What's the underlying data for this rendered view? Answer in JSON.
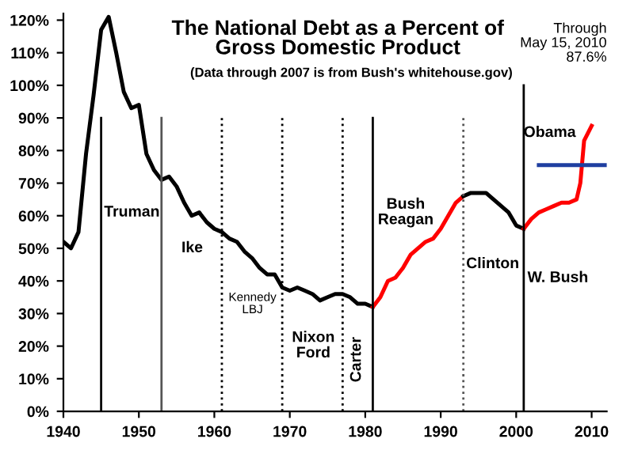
{
  "chart_data": {
    "type": "line",
    "title": "The National Debt as a Percent of\nGross Domestic Product",
    "subtitle": "(Data through 2007 is from Bush's whitehouse.gov)",
    "series": [
      {
        "color": "#000000",
        "x": [
          1940,
          1941,
          1942,
          1943,
          1944,
          1945,
          1946,
          1947,
          1948,
          1949,
          1950,
          1951,
          1952,
          1953,
          1954,
          1955,
          1956,
          1957,
          1958,
          1959,
          1960,
          1961,
          1962,
          1963,
          1964,
          1965,
          1966,
          1967,
          1968,
          1969,
          1970,
          1971,
          1972,
          1973,
          1974,
          1975,
          1976,
          1977,
          1978,
          1979,
          1980,
          1981
        ],
        "values": [
          52,
          50,
          55,
          79,
          97,
          117,
          121,
          110,
          98,
          93,
          94,
          79,
          74,
          71,
          72,
          69,
          64,
          60,
          61,
          58,
          56,
          55,
          53,
          52,
          49,
          47,
          44,
          42,
          42,
          38,
          37,
          38,
          37,
          36,
          34,
          35,
          36,
          36,
          35,
          33,
          33,
          32
        ]
      },
      {
        "color": "#ff0000",
        "x": [
          1981,
          1982,
          1983,
          1984,
          1985,
          1986,
          1987,
          1988,
          1989,
          1990,
          1991,
          1992,
          1993
        ],
        "values": [
          32,
          35,
          40,
          41,
          44,
          48,
          50,
          52,
          53,
          56,
          60,
          64,
          66
        ]
      },
      {
        "color": "#000000",
        "x": [
          1993,
          1994,
          1995,
          1996,
          1997,
          1998,
          1999,
          2000,
          2001
        ],
        "values": [
          66,
          67,
          67,
          67,
          65,
          63,
          61,
          57,
          56
        ]
      },
      {
        "color": "#ff0000",
        "x": [
          2001,
          2002,
          2003,
          2004,
          2005,
          2006,
          2007,
          2008,
          2008.5,
          2009,
          2010
        ],
        "values": [
          56,
          59,
          61,
          62,
          63,
          64,
          64,
          65,
          70,
          83,
          87.6
        ]
      },
      {
        "color": "#1f3fa0",
        "x": [
          2003,
          2012
        ],
        "values": [
          75.5,
          75.5
        ]
      },
      {
        "color": "#000000",
        "line_style": "solid",
        "x": [
          1945,
          1945
        ],
        "values": [
          0,
          90
        ]
      },
      {
        "color": "#555555",
        "line_style": "solid",
        "x": [
          1953,
          1953
        ],
        "values": [
          0,
          90
        ]
      },
      {
        "color": "#000000",
        "line_style": "dotted",
        "x": [
          1961,
          1961
        ],
        "values": [
          0,
          90
        ]
      },
      {
        "color": "#000000",
        "line_style": "dotted",
        "x": [
          1969,
          1969
        ],
        "values": [
          0,
          90
        ]
      },
      {
        "color": "#000000",
        "line_style": "dotted",
        "x": [
          1977,
          1977
        ],
        "values": [
          0,
          90
        ]
      },
      {
        "color": "#000000",
        "line_style": "solid",
        "x": [
          1981,
          1981
        ],
        "values": [
          0,
          90
        ]
      },
      {
        "color": "#555555",
        "line_style": "dotted",
        "x": [
          1993,
          1993
        ],
        "values": [
          0,
          90
        ]
      },
      {
        "color": "#000000",
        "line_style": "solid",
        "x": [
          2001,
          2001
        ],
        "values": [
          0,
          100
        ]
      }
    ],
    "annotations": [
      "Truman",
      "Ike",
      "Kennedy\nLBJ",
      "Nixon\nFord",
      "Carter",
      "Bush\nReagan",
      "Clinton",
      "W. Bush",
      "Obama",
      "Through\nMay 15, 2010\n87.6%"
    ],
    "xlim": [
      1940,
      2012
    ],
    "xticks": [
      1940,
      1950,
      1960,
      1970,
      1980,
      1990,
      2000,
      2010
    ],
    "ylim": [
      0,
      122
    ],
    "yticks": [
      {
        "value": 0,
        "label": "0%"
      },
      {
        "value": 10,
        "label": "10%"
      },
      {
        "value": 20,
        "label": "20%"
      },
      {
        "value": 30,
        "label": "30%"
      },
      {
        "value": 40,
        "label": "40%"
      },
      {
        "value": 50,
        "label": "50%"
      },
      {
        "value": 60,
        "label": "60%"
      },
      {
        "value": 70,
        "label": "70%"
      },
      {
        "value": 80,
        "label": "80%"
      },
      {
        "value": 90,
        "label": "90%"
      },
      {
        "value": 100,
        "label": "100%"
      },
      {
        "value": 110,
        "label": "110%"
      },
      {
        "value": 120,
        "label": "120%"
      }
    ],
    "grid": false,
    "legend": false
  }
}
